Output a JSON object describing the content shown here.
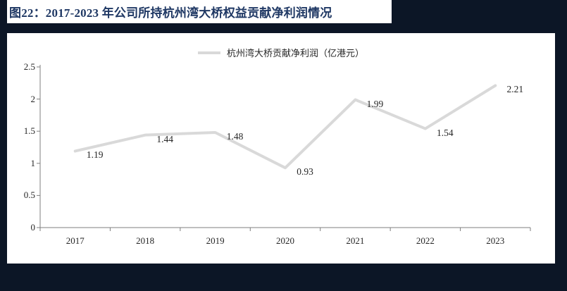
{
  "page": {
    "figure_label": "图22：2017-2023 年公司所持杭州湾大桥权益贡献净利润情况",
    "colors": {
      "title_text": "#1F3864",
      "page_background": "#0C1626",
      "card_background": "#FFFFFF",
      "line": "#D9D9D9",
      "axis": "#7F7F7F",
      "label_text": "#262626"
    }
  },
  "chart_data": {
    "type": "line",
    "title": "",
    "legend": [
      {
        "name": "杭州湾大桥贡献净利润（亿港元）",
        "color": "#D9D9D9",
        "position": "top-center"
      }
    ],
    "categories": [
      "2017",
      "2018",
      "2019",
      "2020",
      "2021",
      "2022",
      "2023"
    ],
    "series": [
      {
        "name": "杭州湾大桥贡献净利润（亿港元）",
        "values": [
          1.19,
          1.44,
          1.48,
          0.93,
          1.99,
          1.54,
          2.21
        ]
      }
    ],
    "data_labels": [
      "1.19",
      "1.44",
      "1.48",
      "0.93",
      "1.99",
      "1.54",
      "2.21"
    ],
    "ylim": [
      0,
      2.5
    ],
    "yticks": [
      "0",
      "0.5",
      "1",
      "1.5",
      "2",
      "2.5"
    ],
    "ytick_values": [
      0,
      0.5,
      1,
      1.5,
      2,
      2.5
    ],
    "grid": false,
    "markers": false
  }
}
